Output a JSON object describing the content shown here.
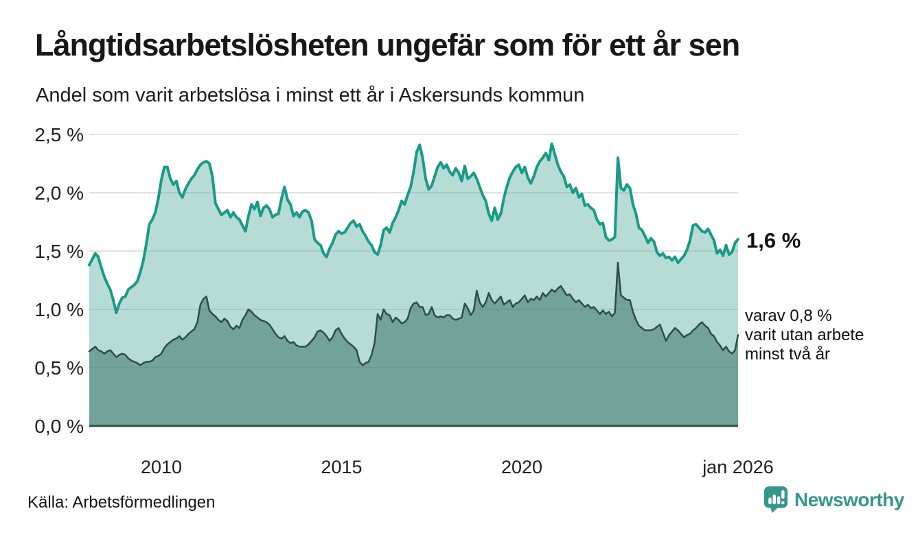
{
  "header": {
    "title": "Långtidsarbetslösheten ungefär som för ett år sen",
    "subtitle": "Andel som varit arbetslösa i minst ett år i Askersunds kommun"
  },
  "annotations": {
    "primary": "1,6 %",
    "secondary_lines": [
      "varav 0,8 %",
      "varit utan arbete",
      "minst två år"
    ]
  },
  "footer": {
    "source": "Källa: Arbetsförmedlingen",
    "brand_name": "Newsworthy",
    "brand_color": "#35968c"
  },
  "colors": {
    "grid": "#e0e0e0",
    "axis_text": "#1f1f1f",
    "baseline": "#2e4d48",
    "series1_line": "#1a9a88",
    "series1_fill": "rgba(94,177,161,0.45)",
    "series2_line": "#2e4d48",
    "series2_fill": "rgba(72,126,118,0.62)"
  },
  "chart_data": {
    "type": "area",
    "title": "Långtidsarbetslösheten ungefär som för ett år sen",
    "subtitle": "Andel som varit arbetslösa i minst ett år i Askersunds kommun",
    "unit": "%",
    "grid": true,
    "ylim": [
      0,
      2.5
    ],
    "x_start_year": 2008,
    "x_step_months": 1,
    "x_end_label": "jan 2026",
    "x_ticks": [
      {
        "label": "2010",
        "year": 2010
      },
      {
        "label": "2015",
        "year": 2015
      },
      {
        "label": "2020",
        "year": 2020
      },
      {
        "label": "jan 2026",
        "year": 2026
      }
    ],
    "y_ticks": [
      {
        "label": "0,0 %",
        "value": 0
      },
      {
        "label": "0,5 %",
        "value": 0.5
      },
      {
        "label": "1,0 %",
        "value": 1.0
      },
      {
        "label": "1,5 %",
        "value": 1.5
      },
      {
        "label": "2,0 %",
        "value": 2.0
      },
      {
        "label": "2,5 %",
        "value": 2.5
      }
    ],
    "series": [
      {
        "name": "Andel arbetslösa minst ett år",
        "end_value_label": "1,6 %",
        "values": [
          1.38,
          1.43,
          1.48,
          1.45,
          1.36,
          1.28,
          1.22,
          1.17,
          1.08,
          0.97,
          1.05,
          1.1,
          1.11,
          1.17,
          1.19,
          1.21,
          1.24,
          1.32,
          1.42,
          1.56,
          1.73,
          1.77,
          1.83,
          1.95,
          2.11,
          2.22,
          2.22,
          2.12,
          2.07,
          2.1,
          2.0,
          1.96,
          2.03,
          2.08,
          2.12,
          2.15,
          2.2,
          2.24,
          2.26,
          2.27,
          2.25,
          2.14,
          1.91,
          1.86,
          1.81,
          1.83,
          1.85,
          1.79,
          1.83,
          1.79,
          1.77,
          1.72,
          1.67,
          1.8,
          1.9,
          1.86,
          1.92,
          1.8,
          1.87,
          1.89,
          1.86,
          1.79,
          1.81,
          1.82,
          1.95,
          2.05,
          1.94,
          1.9,
          1.8,
          1.83,
          1.79,
          1.84,
          1.85,
          1.83,
          1.76,
          1.6,
          1.57,
          1.55,
          1.48,
          1.45,
          1.52,
          1.57,
          1.64,
          1.67,
          1.65,
          1.66,
          1.7,
          1.74,
          1.76,
          1.71,
          1.73,
          1.67,
          1.63,
          1.58,
          1.55,
          1.49,
          1.47,
          1.55,
          1.68,
          1.7,
          1.66,
          1.74,
          1.79,
          1.85,
          1.93,
          1.9,
          1.98,
          2.05,
          2.18,
          2.35,
          2.41,
          2.3,
          2.12,
          2.03,
          2.06,
          2.14,
          2.22,
          2.26,
          2.21,
          2.24,
          2.18,
          2.15,
          2.21,
          2.17,
          2.1,
          2.23,
          2.12,
          2.14,
          2.17,
          2.12,
          2.05,
          1.98,
          1.93,
          1.82,
          1.76,
          1.87,
          1.77,
          1.82,
          1.95,
          2.05,
          2.13,
          2.18,
          2.22,
          2.24,
          2.17,
          2.22,
          2.13,
          2.08,
          2.14,
          2.22,
          2.27,
          2.3,
          2.34,
          2.28,
          2.42,
          2.33,
          2.24,
          2.18,
          2.14,
          2.05,
          2.07,
          2.0,
          2.04,
          1.96,
          1.99,
          1.89,
          1.9,
          1.87,
          1.85,
          1.77,
          1.73,
          1.74,
          1.62,
          1.59,
          1.6,
          1.62,
          2.3,
          2.04,
          2.02,
          2.07,
          2.04,
          1.9,
          1.82,
          1.7,
          1.68,
          1.63,
          1.57,
          1.61,
          1.58,
          1.49,
          1.46,
          1.48,
          1.44,
          1.45,
          1.42,
          1.45,
          1.4,
          1.43,
          1.46,
          1.51,
          1.59,
          1.72,
          1.73,
          1.7,
          1.67,
          1.66,
          1.69,
          1.64,
          1.59,
          1.48,
          1.51,
          1.46,
          1.55,
          1.47,
          1.49,
          1.57,
          1.6
        ]
      },
      {
        "name": "Andel arbetslösa minst två år",
        "end_value_label": "0,8 %",
        "values": [
          0.64,
          0.66,
          0.68,
          0.65,
          0.64,
          0.62,
          0.64,
          0.65,
          0.62,
          0.59,
          0.61,
          0.62,
          0.61,
          0.58,
          0.56,
          0.55,
          0.54,
          0.52,
          0.54,
          0.55,
          0.55,
          0.56,
          0.59,
          0.6,
          0.62,
          0.67,
          0.7,
          0.72,
          0.74,
          0.75,
          0.77,
          0.74,
          0.76,
          0.79,
          0.81,
          0.83,
          0.89,
          1.04,
          1.09,
          1.11,
          0.99,
          0.96,
          0.94,
          0.91,
          0.89,
          0.92,
          0.9,
          0.85,
          0.83,
          0.86,
          0.84,
          0.91,
          0.95,
          1.0,
          0.98,
          0.95,
          0.93,
          0.91,
          0.9,
          0.89,
          0.87,
          0.83,
          0.79,
          0.76,
          0.75,
          0.77,
          0.73,
          0.71,
          0.72,
          0.69,
          0.68,
          0.68,
          0.68,
          0.7,
          0.73,
          0.76,
          0.81,
          0.82,
          0.8,
          0.77,
          0.73,
          0.76,
          0.82,
          0.84,
          0.79,
          0.75,
          0.72,
          0.7,
          0.68,
          0.65,
          0.55,
          0.52,
          0.54,
          0.55,
          0.61,
          0.71,
          0.96,
          0.91,
          1.0,
          0.96,
          0.95,
          0.89,
          0.93,
          0.91,
          0.88,
          0.89,
          0.92,
          1.01,
          1.05,
          1.06,
          1.02,
          1.02,
          0.95,
          0.96,
          1.02,
          0.95,
          0.93,
          0.94,
          0.93,
          0.95,
          0.95,
          0.92,
          0.91,
          0.92,
          0.93,
          1.05,
          1.01,
          0.95,
          0.99,
          1.16,
          1.06,
          1.02,
          1.06,
          1.14,
          1.08,
          1.05,
          1.08,
          1.11,
          1.04,
          1.06,
          1.08,
          1.02,
          1.05,
          1.06,
          1.09,
          1.12,
          1.06,
          1.09,
          1.08,
          1.11,
          1.08,
          1.14,
          1.11,
          1.14,
          1.17,
          1.15,
          1.18,
          1.2,
          1.16,
          1.12,
          1.13,
          1.09,
          1.06,
          1.08,
          1.05,
          1.02,
          1.04,
          1.01,
          1.02,
          0.99,
          0.96,
          0.99,
          0.96,
          0.98,
          0.94,
          0.97,
          1.4,
          1.12,
          1.1,
          1.08,
          1.08,
          0.98,
          0.91,
          0.86,
          0.84,
          0.82,
          0.82,
          0.82,
          0.83,
          0.85,
          0.87,
          0.8,
          0.73,
          0.78,
          0.81,
          0.84,
          0.82,
          0.79,
          0.76,
          0.78,
          0.79,
          0.82,
          0.84,
          0.87,
          0.89,
          0.86,
          0.84,
          0.79,
          0.77,
          0.72,
          0.69,
          0.65,
          0.68,
          0.64,
          0.62,
          0.65,
          0.78
        ]
      }
    ]
  }
}
